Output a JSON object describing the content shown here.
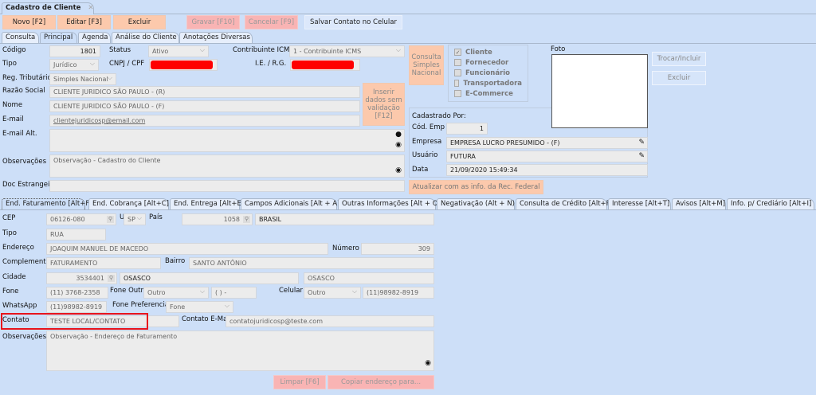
{
  "window": {
    "tab_title": "Cadastro de Cliente",
    "close": "✕"
  },
  "toolbar": {
    "novo": "Novo [F2]",
    "editar": "Editar [F3]",
    "excluir": "Excluir",
    "gravar": "Gravar [F10]",
    "cancelar": "Cancelar [F9]",
    "salvar_celular": "Salvar Contato no Celular"
  },
  "tabs": [
    "Consulta",
    "Principal",
    "Agenda",
    "Análise do Cliente",
    "Anotações Diversas"
  ],
  "main": {
    "codigo_label": "Código",
    "codigo": "1801",
    "status_label": "Status",
    "status": "Ativo",
    "icms_label": "Contribuinte ICMS",
    "icms": "1 - Contribuinte ICMS",
    "tipo_label": "Tipo",
    "tipo": "Jurídico",
    "cnpj_label": "CNPJ / CPF",
    "ie_label": "I.E. / R.G.",
    "reg_label": "Reg. Tributário",
    "reg": "Simples Nacional",
    "razao_label": "Razão Social",
    "razao": "CLIENTE JURIDICO SÃO PAULO - (R)",
    "nome_label": "Nome",
    "nome": "CLIENTE JURIDICO SÃO PAULO - (F)",
    "email_label": "E-mail",
    "email": "clientejuridicosp@email.com",
    "email_alt_label": "E-mail Alt.",
    "obs_label": "Observações",
    "obs": "Observação - Cadastro do Cliente",
    "doc_label": "Doc Estrangeiro",
    "inserir_button": "Inserir dados sem validação [F12]",
    "consulta_simples_button": "Consulta Simples Nacional",
    "checkboxes": [
      {
        "label": "Cliente",
        "checked": true
      },
      {
        "label": "Fornecedor",
        "checked": false
      },
      {
        "label": "Funcionário",
        "checked": false
      },
      {
        "label": "Transportadora",
        "checked": false
      },
      {
        "label": "E-Commerce",
        "checked": false
      }
    ],
    "foto_label": "Foto",
    "trocar_button": "Trocar/Incluir",
    "excluir_foto_button": "Excluir",
    "cadastrado_por": "Cadastrado Por:",
    "cod_emp_label": "Cód. Emp",
    "cod_emp": "1",
    "empresa_label": "Empresa",
    "empresa": "EMPRESA LUCRO PRESUMIDO - (F)",
    "usuario_label": "Usuário",
    "usuario": "FUTURA",
    "data_label": "Data",
    "data": "21/09/2020 15:49:34",
    "atualizar_button": "Atualizar com as info. da Rec. Federal"
  },
  "address_tabs": [
    "End. Faturamento [Alt+F]",
    "End. Cobrança [Alt+C]",
    "End. Entrega [Alt+E]",
    "Campos Adicionais [Alt + A]",
    "Outras Informações [Alt + O]",
    "Negativação (Alt + N)",
    "Consulta de Crédito [Alt+R]",
    "Interesse [Alt+T]",
    "Avisos [Alt+M]",
    "Info. p/ Crediário [Alt+I]"
  ],
  "address": {
    "cep_label": "CEP",
    "cep": "06126-080",
    "uf_label": "UF",
    "uf": "SP",
    "pais_label": "País",
    "pais_code": "1058",
    "pais": "BRASIL",
    "tipo_label": "Tipo",
    "tipo": "RUA",
    "endereco_label": "Endereço",
    "endereco": "JOAQUIM MANUEL DE MACEDO",
    "numero_label": "Número",
    "numero": "309",
    "complemento_label": "Complemento",
    "complemento": "FATURAMENTO",
    "bairro_label": "Bairro",
    "bairro": "SANTO ANTÔNIO",
    "cidade_label": "Cidade",
    "cidade_code": "3534401",
    "cidade": "OSASCO",
    "cidade2": "OSASCO",
    "fone_label": "Fone",
    "fone": "(11) 3768-2358",
    "fone_outro_label": "Fone Outro",
    "fone_outro_tipo": "Outro",
    "fone_outro": "( )   -",
    "celular_label": "Celular",
    "celular_tipo": "Outro",
    "celular": "(11)98982-8919",
    "whatsapp_label": "WhatsApp",
    "whatsapp": "(11)98982-8919",
    "fone_pref_label": "Fone Preferencial",
    "fone_pref": "Fone",
    "contato_label": "Contato",
    "contato": "TESTE LOCAL/CONTATO",
    "contato_email_label": "Contato E-Mail",
    "contato_email": "contatojuridicosp@teste.com",
    "obs_label": "Observações",
    "obs": "Observação - Endereço de Faturamento",
    "limpar_button": "Limpar [F6]",
    "copiar_button": "Copiar endereço para..."
  },
  "colors": {
    "background": "#cddff8",
    "action_button": "#fcc9ac",
    "disabled_button": "#f9b4b4",
    "highlight": "#ff0000"
  }
}
